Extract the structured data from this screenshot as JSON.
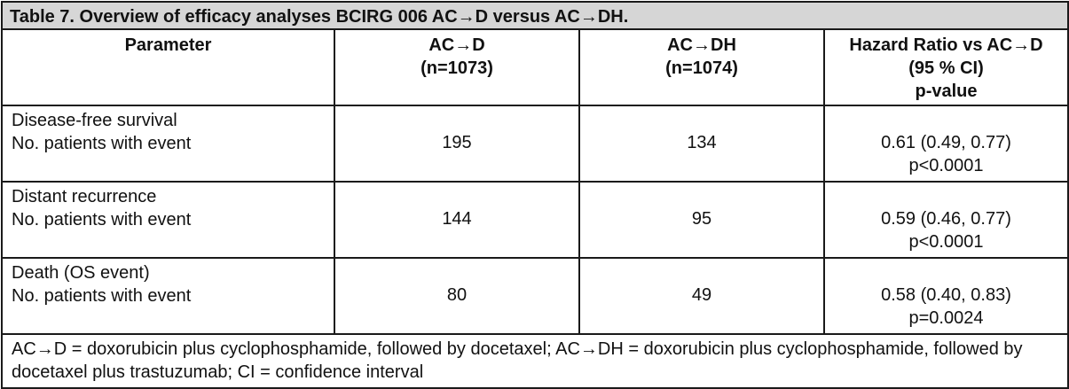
{
  "title": "Table 7. Overview of efficacy analyses BCIRG 006 AC→D versus AC→DH.",
  "headers": [
    [
      "Parameter"
    ],
    [
      "AC→D",
      "(n=1073)"
    ],
    [
      "AC→DH",
      "(n=1074)"
    ],
    [
      "Hazard Ratio vs AC→D",
      "(95 % CI)",
      "p-value"
    ]
  ],
  "rows": [
    {
      "parameter": [
        "Disease-free survival",
        "No. patients with event"
      ],
      "acd": "195",
      "acdh": "134",
      "hr": [
        "0.61 (0.49, 0.77)",
        "p<0.0001"
      ]
    },
    {
      "parameter": [
        "Distant recurrence",
        "No. patients with event"
      ],
      "acd": "144",
      "acdh": "95",
      "hr": [
        "0.59 (0.46, 0.77)",
        "p<0.0001"
      ]
    },
    {
      "parameter": [
        "Death (OS event)",
        "No. patients with event"
      ],
      "acd": "80",
      "acdh": "49",
      "hr": [
        "0.58 (0.40, 0.83)",
        "p=0.0024"
      ]
    }
  ],
  "footnote": "AC→D = doxorubicin plus cyclophosphamide, followed by docetaxel; AC→DH = doxorubicin plus cyclophosphamide, followed by docetaxel plus trastuzumab; CI = confidence interval",
  "colors": {
    "title_background": "#d6d6d6",
    "border": "#1a1a1a",
    "text": "#111111"
  }
}
